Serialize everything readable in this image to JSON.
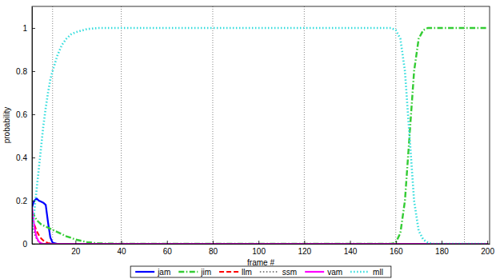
{
  "chart_data": {
    "type": "line",
    "x_label": "frame #",
    "y_label": "probability",
    "x": [
      1,
      2,
      3,
      4,
      5,
      6,
      7,
      8,
      9,
      10,
      12,
      14,
      16,
      18,
      20,
      25,
      30,
      40,
      80,
      120,
      158,
      160,
      162,
      164,
      166,
      168,
      170,
      172,
      174,
      176,
      180,
      200
    ],
    "series": [
      {
        "name": "jam",
        "color": "#0000ff",
        "line_style": "solid",
        "values": [
          0.17,
          0.2,
          0.21,
          0.2,
          0.195,
          0.19,
          0.18,
          0.1,
          0.03,
          0.005,
          0,
          0,
          0,
          0,
          0,
          0,
          0,
          0,
          0,
          0,
          0,
          0,
          0,
          0,
          0,
          0,
          0,
          0,
          0,
          0,
          0,
          0
        ]
      },
      {
        "name": "jim",
        "color": "#33cc33",
        "line_style": "dashdot",
        "values": [
          0.15,
          0.13,
          0.11,
          0.1,
          0.09,
          0.085,
          0.08,
          0.075,
          0.07,
          0.065,
          0.055,
          0.045,
          0.035,
          0.028,
          0.02,
          0.008,
          0.002,
          0,
          0,
          0,
          0,
          0.005,
          0.05,
          0.2,
          0.5,
          0.8,
          0.95,
          0.99,
          1,
          1,
          1,
          1
        ]
      },
      {
        "name": "llm",
        "color": "#ff0000",
        "line_style": "dashed",
        "values": [
          0.12,
          0.09,
          0.06,
          0.04,
          0.025,
          0.015,
          0.008,
          0.004,
          0.002,
          0,
          0,
          0,
          0,
          0,
          0,
          0,
          0,
          0,
          0,
          0,
          0,
          0,
          0,
          0,
          0,
          0,
          0,
          0,
          0,
          0,
          0,
          0
        ]
      },
      {
        "name": "ssm",
        "color": "#000000",
        "line_style": "dotted",
        "values": [
          0.1,
          0.05,
          0.02,
          0.005,
          0,
          0,
          0,
          0,
          0,
          0,
          0,
          0,
          0,
          0,
          0,
          0,
          0,
          0,
          0,
          0,
          0,
          0,
          0,
          0,
          0,
          0,
          0,
          0,
          0,
          0,
          0,
          0
        ]
      },
      {
        "name": "vam",
        "color": "#ff00ff",
        "line_style": "solid",
        "values": [
          0.17,
          0.08,
          0.03,
          0.01,
          0.003,
          0,
          0,
          0,
          0,
          0,
          0,
          0,
          0,
          0,
          0,
          0,
          0,
          0,
          0,
          0,
          0,
          0,
          0,
          0,
          0,
          0,
          0,
          0,
          0,
          0,
          0,
          0
        ]
      },
      {
        "name": "mll",
        "color": "#33dddd",
        "line_style": "dotted",
        "values": [
          0.05,
          0.15,
          0.25,
          0.35,
          0.45,
          0.55,
          0.63,
          0.7,
          0.76,
          0.8,
          0.87,
          0.92,
          0.95,
          0.97,
          0.98,
          0.995,
          1,
          1,
          1,
          1,
          1,
          0.99,
          0.95,
          0.8,
          0.5,
          0.2,
          0.06,
          0.02,
          0.005,
          0,
          0,
          0
        ]
      }
    ],
    "vlines": [
      10,
      40,
      80,
      120,
      160,
      190
    ],
    "xlim": [
      1,
      201
    ],
    "xticks": [
      20,
      40,
      60,
      80,
      100,
      120,
      140,
      160,
      180,
      200
    ],
    "ylim": [
      0,
      1.1
    ],
    "yticks": [
      0,
      0.2,
      0.4,
      0.6,
      0.8,
      1
    ],
    "legend": "bottom"
  }
}
